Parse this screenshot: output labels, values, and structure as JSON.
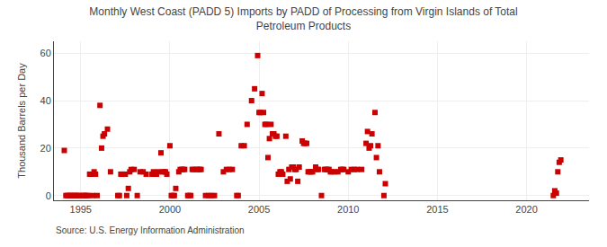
{
  "chart_data": {
    "type": "scatter",
    "title": "Monthly West Coast (PADD 5) Imports by PADD of Processing from Virgin Islands of Total\nPetroleum Products",
    "ylabel": "Thousand Barrels per Day",
    "annotations": [
      "Source: U.S. Energy Information Administration"
    ],
    "color": "#cc0000",
    "marker": "square",
    "grid": true,
    "xlim": [
      1993.5,
      2023.5
    ],
    "ylim": [
      -2,
      65
    ],
    "xticks": [
      1995,
      2000,
      2005,
      2010,
      2015,
      2020
    ],
    "yticks": [
      0,
      20,
      40,
      60
    ],
    "x": [
      1994.08,
      1994.17,
      1994.25,
      1994.33,
      1994.42,
      1994.5,
      1994.58,
      1994.67,
      1994.75,
      1994.83,
      1994.92,
      1995.08,
      1995.17,
      1995.25,
      1995.33,
      1995.42,
      1995.5,
      1995.58,
      1995.67,
      1995.75,
      1995.83,
      1995.92,
      1996.08,
      1996.17,
      1996.25,
      1996.33,
      1996.5,
      1996.67,
      1997.08,
      1997.17,
      1997.25,
      1997.33,
      1997.5,
      1997.58,
      1997.67,
      1997.75,
      1997.83,
      1998.0,
      1998.17,
      1998.33,
      1998.5,
      1998.67,
      1999.0,
      1999.08,
      1999.17,
      1999.25,
      1999.33,
      1999.5,
      1999.58,
      1999.67,
      1999.75,
      1999.83,
      2000.0,
      2000.08,
      2000.17,
      2000.25,
      2000.33,
      2000.5,
      2000.58,
      2000.67,
      2000.75,
      2000.83,
      2001.0,
      2001.08,
      2001.17,
      2001.25,
      2001.33,
      2001.5,
      2001.58,
      2001.67,
      2001.75,
      2002.0,
      2002.17,
      2002.33,
      2002.5,
      2002.75,
      2003.0,
      2003.17,
      2003.33,
      2003.5,
      2003.75,
      2003.83,
      2004.0,
      2004.17,
      2004.33,
      2004.58,
      2004.75,
      2004.92,
      2005.0,
      2005.08,
      2005.17,
      2005.25,
      2005.33,
      2005.42,
      2005.5,
      2005.58,
      2005.67,
      2005.75,
      2005.83,
      2005.92,
      2006.0,
      2006.08,
      2006.17,
      2006.25,
      2006.33,
      2006.5,
      2006.58,
      2006.67,
      2006.75,
      2006.83,
      2006.92,
      2007.0,
      2007.08,
      2007.17,
      2007.25,
      2007.42,
      2007.5,
      2007.58,
      2007.67,
      2007.75,
      2007.83,
      2007.92,
      2008.0,
      2008.17,
      2008.25,
      2008.33,
      2008.5,
      2008.67,
      2008.75,
      2008.83,
      2008.92,
      2009.0,
      2009.08,
      2009.25,
      2009.42,
      2009.58,
      2009.67,
      2009.75,
      2010.0,
      2010.17,
      2010.33,
      2010.5,
      2010.75,
      2011.0,
      2011.08,
      2011.17,
      2011.25,
      2011.33,
      2011.5,
      2011.58,
      2011.67,
      2011.75,
      2012.0,
      2012.08,
      2021.5,
      2021.58,
      2021.67,
      2021.75,
      2021.83,
      2021.92
    ],
    "values": [
      19,
      0,
      0,
      0,
      0,
      0,
      0,
      0,
      0,
      0,
      0,
      0,
      0,
      0,
      0,
      0,
      9,
      9,
      0,
      10,
      9,
      0,
      38,
      20,
      25,
      26,
      28,
      10,
      0,
      0,
      9,
      9,
      9,
      0,
      3,
      10,
      11,
      11,
      0,
      10,
      10,
      9,
      9,
      10,
      9,
      9,
      10,
      18,
      10,
      10,
      10,
      9,
      21,
      0,
      0,
      0,
      3,
      10,
      11,
      11,
      11,
      11,
      0,
      0,
      0,
      11,
      11,
      11,
      11,
      11,
      11,
      0,
      0,
      0,
      0,
      26,
      10,
      11,
      11,
      11,
      0,
      0,
      21,
      21,
      30,
      40,
      45,
      59,
      35,
      35,
      43,
      35,
      30,
      30,
      16,
      24,
      30,
      26,
      26,
      25,
      25,
      9,
      10,
      10,
      9,
      25,
      6,
      11,
      7,
      12,
      12,
      11,
      11,
      6,
      12,
      23,
      22,
      22,
      22,
      10,
      10,
      10,
      10,
      12,
      11,
      11,
      0,
      11,
      11,
      11,
      11,
      10,
      10,
      10,
      10,
      11,
      11,
      11,
      10,
      11,
      11,
      11,
      11,
      22,
      27,
      20,
      21,
      26,
      35,
      16,
      21,
      10,
      0,
      5,
      0,
      2,
      1,
      10,
      14,
      15
    ]
  }
}
